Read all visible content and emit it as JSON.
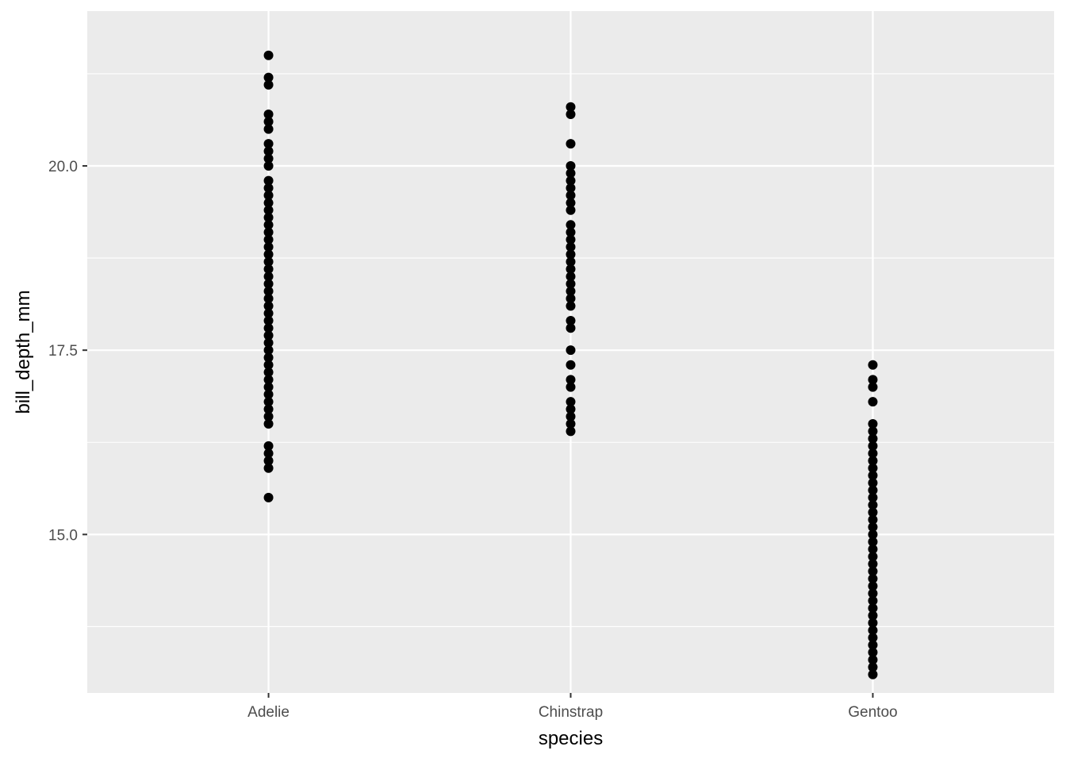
{
  "chart_data": {
    "type": "scatter",
    "title": "",
    "xlabel": "species",
    "ylabel": "bill_depth_mm",
    "categories": [
      "Adelie",
      "Chinstrap",
      "Gentoo"
    ],
    "ylim": [
      12.85,
      22.1
    ],
    "yticks": [
      {
        "value": 15.0,
        "label": "15.0"
      },
      {
        "value": 17.5,
        "label": "17.5"
      },
      {
        "value": 20.0,
        "label": "20.0"
      }
    ],
    "yminor": [
      13.75,
      16.25,
      18.75,
      21.25
    ],
    "grid": true,
    "legend": "none",
    "colors": {
      "panel": "#ebebeb",
      "grid": "#ffffff",
      "point": "#000000",
      "tick": "#333333"
    },
    "series": [
      {
        "category": "Adelie",
        "values": [
          21.5,
          21.2,
          21.1,
          20.7,
          20.6,
          20.5,
          20.3,
          20.2,
          20.1,
          20.0,
          19.8,
          19.7,
          19.6,
          19.5,
          19.4,
          19.3,
          19.2,
          19.1,
          19.0,
          18.9,
          18.8,
          18.7,
          18.6,
          18.5,
          18.4,
          18.3,
          18.2,
          18.1,
          18.0,
          17.9,
          17.8,
          17.7,
          17.6,
          17.5,
          17.4,
          17.3,
          17.2,
          17.1,
          17.0,
          16.9,
          16.8,
          16.7,
          16.6,
          16.5,
          16.2,
          16.1,
          16.0,
          15.9,
          15.5
        ]
      },
      {
        "category": "Chinstrap",
        "values": [
          20.8,
          20.7,
          20.3,
          20.0,
          19.9,
          19.8,
          19.7,
          19.6,
          19.5,
          19.4,
          19.2,
          19.1,
          19.0,
          18.9,
          18.8,
          18.7,
          18.6,
          18.5,
          18.4,
          18.3,
          18.2,
          18.1,
          17.9,
          17.8,
          17.5,
          17.3,
          17.1,
          17.0,
          16.8,
          16.7,
          16.6,
          16.5,
          16.4
        ]
      },
      {
        "category": "Gentoo",
        "values": [
          17.3,
          17.1,
          17.0,
          16.8,
          16.5,
          16.4,
          16.3,
          16.2,
          16.1,
          16.0,
          15.9,
          15.8,
          15.7,
          15.6,
          15.5,
          15.4,
          15.3,
          15.2,
          15.1,
          15.0,
          14.9,
          14.8,
          14.7,
          14.6,
          14.5,
          14.4,
          14.3,
          14.2,
          14.1,
          14.0,
          13.9,
          13.8,
          13.7,
          13.6,
          13.5,
          13.4,
          13.3,
          13.2,
          13.1
        ]
      }
    ]
  }
}
